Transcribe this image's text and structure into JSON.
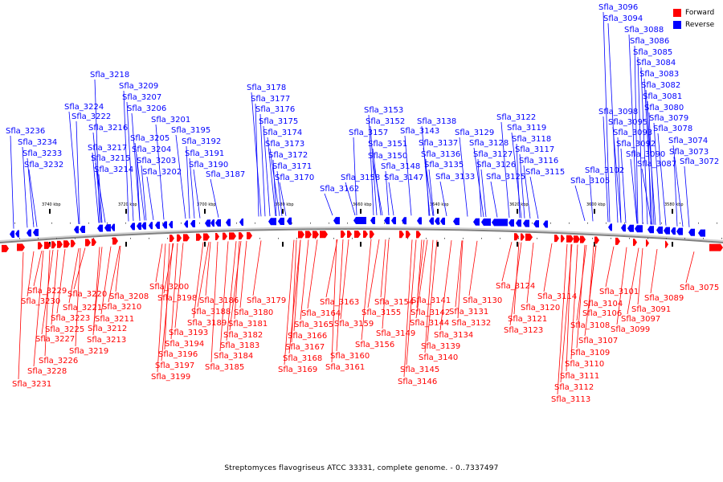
{
  "caption": "Streptomyces flavogriseus ATCC 33331, complete genome. - 0..7337497",
  "legend": {
    "forward": {
      "label": "Forward",
      "color": "#ff0000"
    },
    "reverse": {
      "label": "Reverse",
      "color": "#0000ff"
    }
  },
  "colors": {
    "forward": "#ff0000",
    "reverse": "#0000ff",
    "backbone": "#808080"
  },
  "tick_labels": [
    "3740 kbp",
    "3720 kbp",
    "3700 kbp",
    "3680 kbp",
    "3660 kbp",
    "3640 kbp",
    "3620 kbp",
    "3600 kbp",
    "3580 kbp"
  ],
  "genes_reverse": [
    "Sfla_3236",
    "Sfla_3234",
    "Sfla_3233",
    "Sfla_3232",
    "Sfla_3224",
    "Sfla_3222",
    "Sfla_3218",
    "Sfla_3217",
    "Sfla_3216",
    "Sfla_3215",
    "Sfla_3214",
    "Sfla_3209",
    "Sfla_3207",
    "Sfla_3206",
    "Sfla_3205",
    "Sfla_3204",
    "Sfla_3203",
    "Sfla_3202",
    "Sfla_3201",
    "Sfla_3195",
    "Sfla_3192",
    "Sfla_3191",
    "Sfla_3190",
    "Sfla_3187",
    "Sfla_3178",
    "Sfla_3177",
    "Sfla_3176",
    "Sfla_3175",
    "Sfla_3174",
    "Sfla_3173",
    "Sfla_3172",
    "Sfla_3171",
    "Sfla_3170",
    "Sfla_3162",
    "Sfla_3158",
    "Sfla_3157",
    "Sfla_3153",
    "Sfla_3152",
    "Sfla_3151",
    "Sfla_3150",
    "Sfla_3148",
    "Sfla_3147",
    "Sfla_3143",
    "Sfla_3138",
    "Sfla_3137",
    "Sfla_3136",
    "Sfla_3135",
    "Sfla_3133",
    "Sfla_3129",
    "Sfla_3128",
    "Sfla_3127",
    "Sfla_3126",
    "Sfla_3125",
    "Sfla_3122",
    "Sfla_3119",
    "Sfla_3118",
    "Sfla_3117",
    "Sfla_3116",
    "Sfla_3115",
    "Sfla_3105",
    "Sfla_3102",
    "Sfla_3098",
    "Sfla_3096",
    "Sfla_3095",
    "Sfla_3094",
    "Sfla_3093",
    "Sfla_3092",
    "Sfla_3090",
    "Sfla_3088",
    "Sfla_3087",
    "Sfla_3086",
    "Sfla_3085",
    "Sfla_3084",
    "Sfla_3083",
    "Sfla_3082",
    "Sfla_3081",
    "Sfla_3080",
    "Sfla_3079",
    "Sfla_3078",
    "Sfla_3074",
    "Sfla_3073",
    "Sfla_3072"
  ],
  "genes_forward": [
    "Sfla_3231",
    "Sfla_3230",
    "Sfla_3229",
    "Sfla_3228",
    "Sfla_3227",
    "Sfla_3226",
    "Sfla_3225",
    "Sfla_3223",
    "Sfla_3221",
    "Sfla_3220",
    "Sfla_3219",
    "Sfla_3213",
    "Sfla_3212",
    "Sfla_3211",
    "Sfla_3210",
    "Sfla_3208",
    "Sfla_3200",
    "Sfla_3199",
    "Sfla_3198",
    "Sfla_3197",
    "Sfla_3196",
    "Sfla_3194",
    "Sfla_3193",
    "Sfla_3189",
    "Sfla_3188",
    "Sfla_3186",
    "Sfla_3185",
    "Sfla_3184",
    "Sfla_3183",
    "Sfla_3182",
    "Sfla_3181",
    "Sfla_3180",
    "Sfla_3179",
    "Sfla_3169",
    "Sfla_3168",
    "Sfla_3167",
    "Sfla_3166",
    "Sfla_3165",
    "Sfla_3164",
    "Sfla_3163",
    "Sfla_3161",
    "Sfla_3160",
    "Sfla_3159",
    "Sfla_3156",
    "Sfla_3155",
    "Sfla_3154",
    "Sfla_3149",
    "Sfla_3146",
    "Sfla_3145",
    "Sfla_3144",
    "Sfla_3142",
    "Sfla_3141",
    "Sfla_3140",
    "Sfla_3139",
    "Sfla_3134",
    "Sfla_3132",
    "Sfla_3131",
    "Sfla_3130",
    "Sfla_3124",
    "Sfla_3123",
    "Sfla_3121",
    "Sfla_3120",
    "Sfla_3114",
    "Sfla_3113",
    "Sfla_3112",
    "Sfla_3111",
    "Sfla_3110",
    "Sfla_3109",
    "Sfla_3108",
    "Sfla_3107",
    "Sfla_3106",
    "Sfla_3104",
    "Sfla_3101",
    "Sfla_3099",
    "Sfla_3097",
    "Sfla_3091",
    "Sfla_3089",
    "Sfla_3075"
  ]
}
